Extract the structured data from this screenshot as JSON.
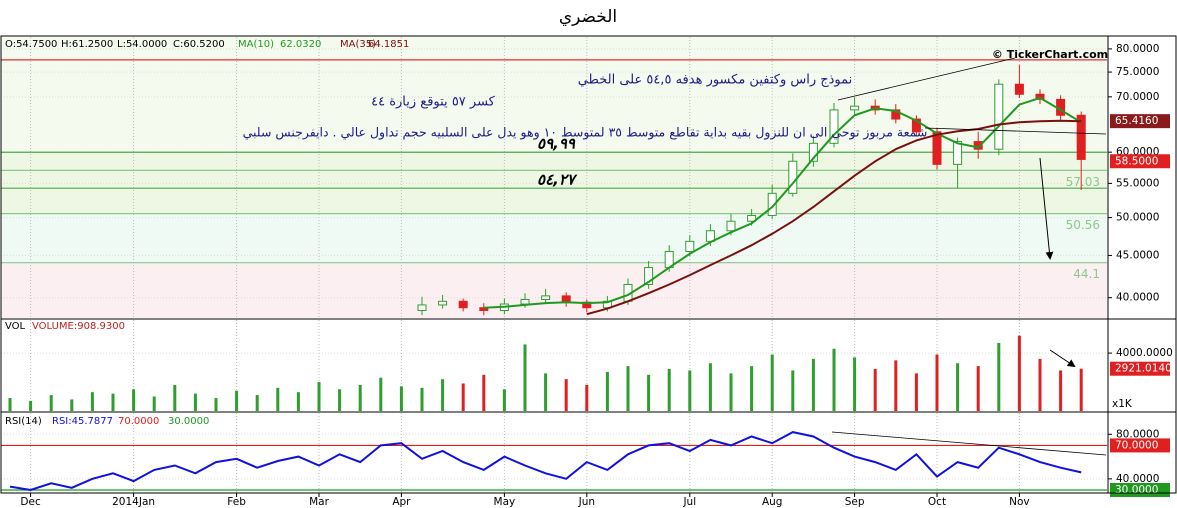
{
  "title": "الخضري",
  "watermark": "© TickerChart.com",
  "annotations": [
    "نموذج راس وكتفين مكسور هدفه ٥٤,٥ على الخطي",
    "كسر ٥٧ يتوقع زيارة ٤٤",
    "شمعة مربوز توحي الى ان للنزول بقيه بداية تقاطع متوسط ٣٥ لمتوسط ١٠ وهو يدل على السلبيه حجم تداول عالي . دايفرجنس سلبي"
  ],
  "chart_data": [
    {
      "type": "candlestick",
      "header": [
        "O:54.7500",
        "H:61.2500",
        "L:54.0000",
        "C:60.5200"
      ],
      "log_scale": true,
      "ylim": [
        37.8,
        82.7
      ],
      "yticks": [
        {
          "value": 40,
          "label": "40.0000"
        },
        {
          "value": 45,
          "label": "45.0000"
        },
        {
          "value": 50,
          "label": "50.0000"
        },
        {
          "value": 55,
          "label": "55.0000"
        },
        {
          "value": 60,
          "label": "60.0000"
        },
        {
          "value": 70,
          "label": "70.0000"
        },
        {
          "value": 75,
          "label": "75.0000"
        },
        {
          "value": 80,
          "label": "80.0000"
        }
      ],
      "up_color": "#2e9e2e",
      "down_color": "#e02020",
      "open": [
        null,
        null,
        null,
        null,
        null,
        null,
        null,
        null,
        null,
        null,
        null,
        null,
        null,
        null,
        null,
        null,
        null,
        null,
        null,
        null,
        38.6,
        39.2,
        39.6,
        38.9,
        38.6,
        39.3,
        39.8,
        40.2,
        39.5,
        38.9,
        39.6,
        41.5,
        43.5,
        45.5,
        46.8,
        48.2,
        49.5,
        50.3,
        53.5,
        58.5,
        61.5,
        67.5,
        68.2,
        67.5,
        65.8,
        63.5,
        58,
        61.8,
        60.5,
        72.5,
        70.5,
        69.5,
        66.5
      ],
      "high": [
        null,
        null,
        null,
        null,
        null,
        null,
        null,
        null,
        null,
        null,
        null,
        null,
        null,
        null,
        null,
        null,
        null,
        null,
        null,
        null,
        40.1,
        40.3,
        39.9,
        39.4,
        39.9,
        40.5,
        41,
        40.6,
        39.8,
        40.2,
        42.2,
        44.3,
        46.3,
        47.6,
        49.1,
        50.5,
        51.2,
        54.8,
        59.8,
        62.8,
        68.8,
        69.9,
        69.5,
        68.6,
        66.5,
        64.2,
        62.5,
        63.5,
        73.5,
        76.5,
        71.5,
        70.3,
        67.2
      ],
      "low": [
        null,
        null,
        null,
        null,
        null,
        null,
        null,
        null,
        null,
        null,
        null,
        null,
        null,
        null,
        null,
        null,
        null,
        null,
        null,
        null,
        38.1,
        38.8,
        38.5,
        38.1,
        38.2,
        38.9,
        39.3,
        39.0,
        38.4,
        38.5,
        39.2,
        41.0,
        43.0,
        44.9,
        46.2,
        47.6,
        48.9,
        49.8,
        53.0,
        57.6,
        60.8,
        66.5,
        66.6,
        65.0,
        62.8,
        57.2,
        54.3,
        58.9,
        59.5,
        69.8,
        68.6,
        65.6,
        54.0
      ],
      "close": [
        null,
        null,
        null,
        null,
        null,
        null,
        null,
        null,
        null,
        null,
        null,
        null,
        null,
        null,
        null,
        null,
        null,
        null,
        null,
        null,
        39.2,
        39.6,
        38.9,
        38.6,
        39.3,
        39.8,
        40.2,
        39.5,
        38.9,
        39.6,
        41.5,
        43.5,
        45.5,
        46.8,
        48.2,
        49.5,
        50.3,
        53.5,
        58.5,
        61.5,
        67.5,
        68.2,
        67.5,
        65.8,
        63.5,
        58,
        61.8,
        60.5,
        72.5,
        70.5,
        69.5,
        66.5,
        58.8
      ],
      "series": [
        {
          "name": "MA(10)",
          "readout": "62.0320",
          "color": "#1f9a1f",
          "values": [
            null,
            null,
            null,
            null,
            null,
            null,
            null,
            null,
            null,
            null,
            null,
            null,
            null,
            null,
            null,
            null,
            null,
            null,
            null,
            null,
            null,
            null,
            null,
            38.9,
            39.0,
            39.2,
            39.4,
            39.5,
            39.4,
            39.5,
            40.3,
            41.8,
            43.5,
            45.2,
            46.7,
            48.0,
            49.2,
            51.5,
            55,
            59,
            63,
            66.5,
            67.8,
            67.3,
            65.5,
            63.2,
            61.5,
            60.8,
            64.5,
            68.5,
            69.8,
            67.5,
            65.2
          ]
        },
        {
          "name": "MA(35)",
          "readout": "64.1851",
          "color": "#7a1010",
          "values": [
            null,
            null,
            null,
            null,
            null,
            null,
            null,
            null,
            null,
            null,
            null,
            null,
            null,
            null,
            null,
            null,
            null,
            null,
            null,
            null,
            null,
            null,
            null,
            null,
            null,
            null,
            null,
            null,
            38.2,
            38.8,
            39.6,
            40.5,
            41.5,
            42.6,
            43.8,
            45.0,
            46.3,
            47.8,
            49.5,
            51.5,
            53.8,
            56.2,
            58.5,
            60.5,
            62.0,
            63.0,
            63.6,
            64.0,
            64.8,
            65.2,
            65.4,
            65.5,
            65.4
          ]
        }
      ],
      "levels": [
        {
          "value": 77.6,
          "color": "#e03030"
        },
        {
          "value": 59.99,
          "label": "٥٩,٩٩",
          "color": "#4aa84a"
        },
        {
          "value": 57.03,
          "label": "57.03",
          "color": "#8cc88c"
        },
        {
          "value": 54.27,
          "label": "٥٤,٢٧",
          "color": "#4aa84a"
        },
        {
          "value": 50.56,
          "label": "50.56",
          "color": "#8cc88c"
        },
        {
          "value": 44.1,
          "label": "44.1",
          "color": "#8cc88c"
        }
      ],
      "markers": [
        {
          "value": 65.416,
          "label": "65.4160",
          "color": "#8b1a1a"
        },
        {
          "value": 58.5,
          "label": "58.5000",
          "color": "#e02020"
        }
      ]
    },
    {
      "type": "bar",
      "name": "VOL",
      "readout": "VOLUME:908.9300",
      "unit_label": "x1K",
      "color": "#2e9e2e",
      "ylim": [
        0,
        6286
      ],
      "yticks": [
        {
          "value": 4000,
          "label": "4000.0000"
        }
      ],
      "values": [
        900,
        700,
        1100,
        800,
        1300,
        1200,
        1500,
        1000,
        1800,
        1200,
        900,
        1400,
        1100,
        1600,
        1300,
        2000,
        1500,
        1800,
        2300,
        1700,
        1600,
        2200,
        1900,
        2500,
        1500,
        4600,
        2600,
        2200,
        1800,
        2700,
        3100,
        2500,
        2900,
        2800,
        3300,
        2600,
        3100,
        3900,
        2800,
        3600,
        4300,
        3700,
        2900,
        3500,
        2600,
        3900,
        3300,
        3100,
        4700,
        5200,
        3600,
        2800,
        2921.014
      ],
      "markers": [
        {
          "value": 2921.014,
          "label": "2921.0140",
          "color": "#e02020"
        }
      ]
    },
    {
      "type": "line",
      "name": "RSI(14)",
      "readout": "RSI:45.7877",
      "color": "#1010e0",
      "ylim": [
        27.3,
        99.1
      ],
      "yticks": [
        {
          "value": 40,
          "label": "40.0000"
        },
        {
          "value": 80,
          "label": "80.0000"
        }
      ],
      "categories": [
        null,
        "Dec",
        null,
        null,
        null,
        null,
        "2014Jan",
        null,
        null,
        null,
        null,
        "Feb",
        null,
        null,
        null,
        "Mar",
        null,
        null,
        null,
        "Apr",
        null,
        null,
        null,
        null,
        "May",
        null,
        null,
        null,
        "Jun",
        null,
        null,
        null,
        null,
        "Jul",
        null,
        null,
        null,
        "Aug",
        null,
        null,
        null,
        "Sep",
        null,
        null,
        null,
        "Oct",
        null,
        null,
        null,
        "Nov",
        null,
        null,
        null
      ],
      "values": [
        33,
        30,
        36,
        32,
        40,
        45,
        38,
        48,
        52,
        45,
        55,
        58,
        50,
        56,
        60,
        52,
        62,
        55,
        70,
        72,
        58,
        65,
        55,
        48,
        60,
        52,
        45,
        40,
        55,
        48,
        62,
        70,
        72,
        65,
        75,
        70,
        78,
        72,
        82,
        78,
        68,
        60,
        55,
        48,
        62,
        42,
        55,
        50,
        68,
        62,
        55,
        50,
        45.79
      ],
      "levels": [
        {
          "value": 70,
          "label": "70.0000",
          "color": "#e02020"
        },
        {
          "value": 30,
          "label": "30.0000",
          "color": "#1f9a1f"
        }
      ]
    }
  ]
}
